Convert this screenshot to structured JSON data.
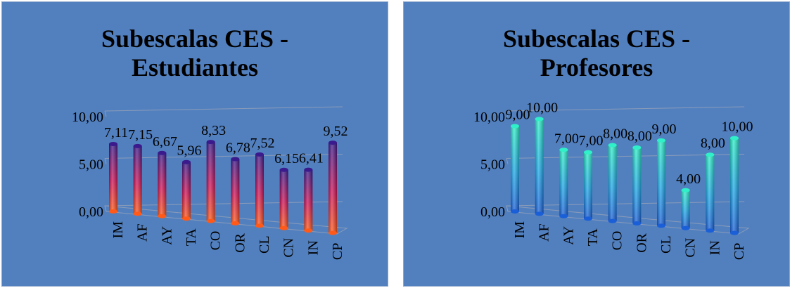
{
  "chart_data": [
    {
      "type": "bar",
      "title_lines": [
        "Subescalas CES -",
        "Estudiantes"
      ],
      "categories": [
        "IM",
        "AF",
        "AY",
        "TA",
        "CO",
        "OR",
        "CL",
        "CN",
        "IN",
        "CP"
      ],
      "values": [
        7.11,
        7.15,
        6.67,
        5.96,
        8.33,
        6.78,
        7.52,
        6.15,
        6.41,
        9.52
      ],
      "data_labels": [
        "7,11",
        "7,15",
        "6,67",
        "5,96",
        "8,33",
        "6,78",
        "7,52",
        "6,15",
        "6,41",
        "9,52"
      ],
      "y_ticks": [
        "0,00",
        "5,00",
        "10,00"
      ],
      "ylim": [
        0,
        10
      ],
      "style": "3d-cylinder",
      "colors": {
        "top": "#3a1a8c",
        "bottom": "#ff5a1a",
        "mid": "#d0155a",
        "background": "#5280bf"
      }
    },
    {
      "type": "bar",
      "title_lines": [
        "Subescalas CES -",
        "Profesores"
      ],
      "categories": [
        "IM",
        "AF",
        "AY",
        "TA",
        "CO",
        "OR",
        "CL",
        "CN",
        "IN",
        "CP"
      ],
      "values": [
        9.0,
        10.0,
        7.0,
        7.0,
        8.0,
        8.0,
        9.0,
        4.0,
        8.0,
        10.0
      ],
      "data_labels": [
        "9,00",
        "10,00",
        "7,00",
        "7,00",
        "8,00",
        "8,00",
        "9,00",
        "4,00",
        "8,00",
        "10,00"
      ],
      "y_ticks": [
        "0,00",
        "5,00",
        "10,00"
      ],
      "ylim": [
        0,
        10
      ],
      "style": "3d-cylinder",
      "colors": {
        "top": "#2ff0c8",
        "bottom": "#1a5fd8",
        "mid": "#20a8e8",
        "background": "#5280bf"
      }
    }
  ]
}
